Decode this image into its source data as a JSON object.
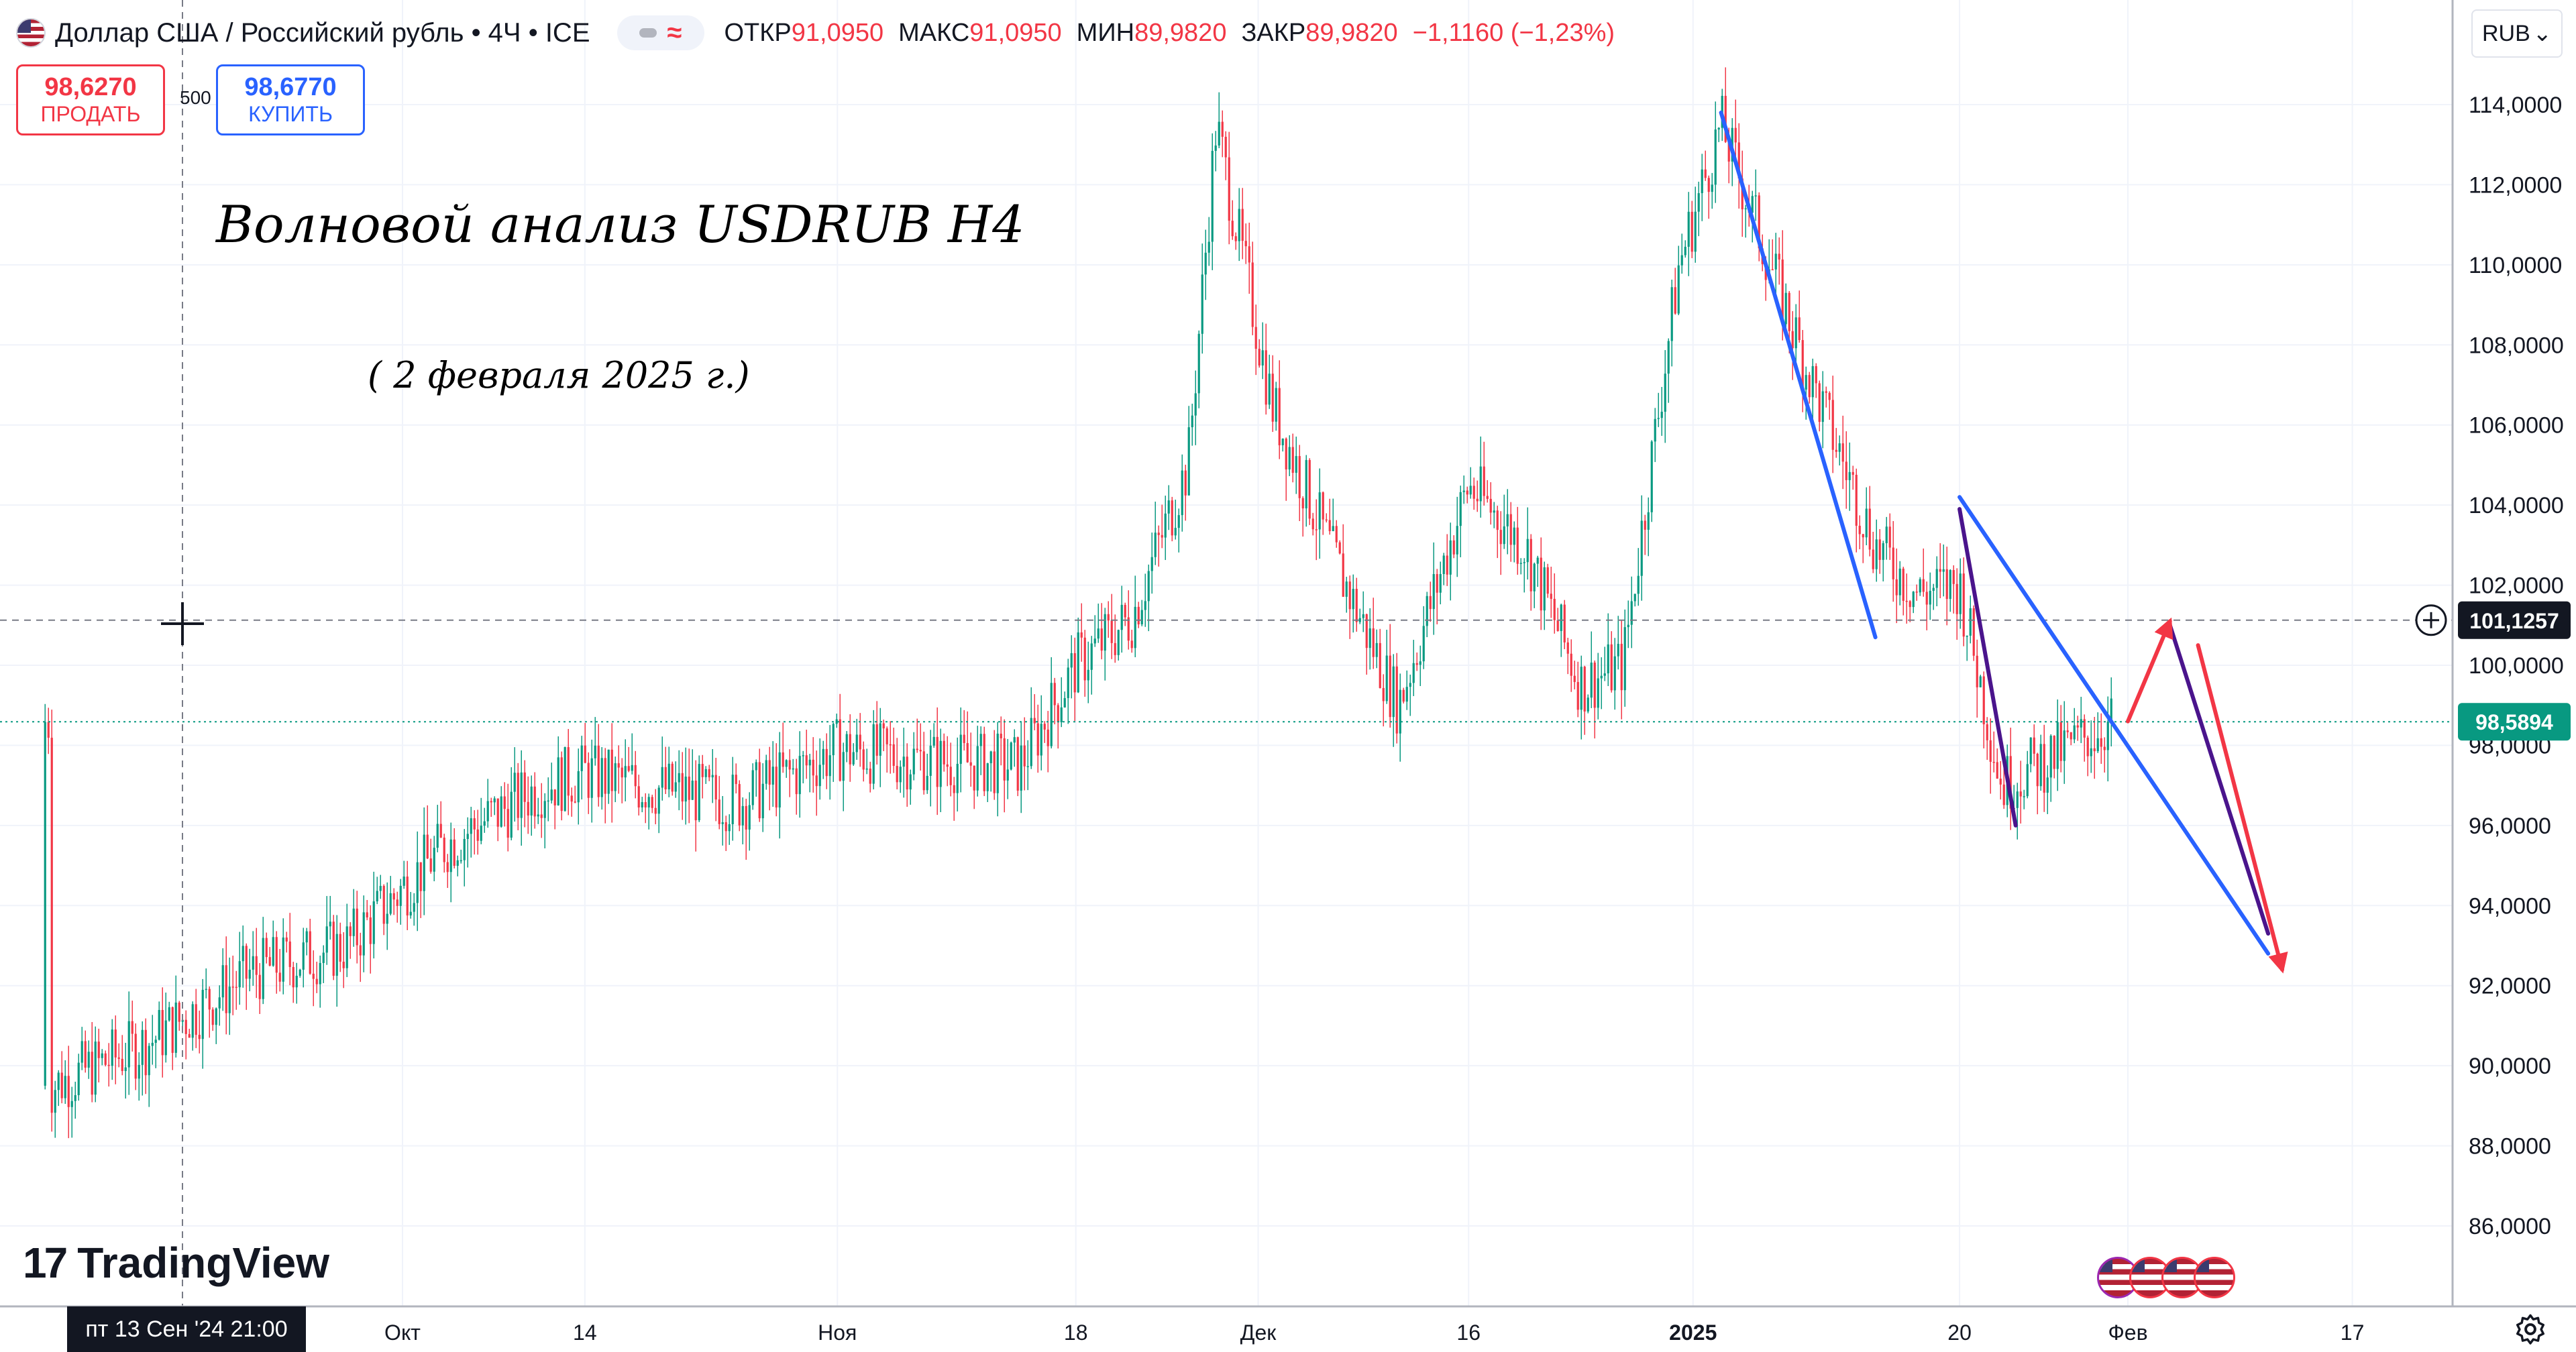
{
  "header": {
    "symbol": "Доллар США / Российский рубль • 4Ч • ICE",
    "ohlc": [
      {
        "label": "ОТКР",
        "value": "91,0950"
      },
      {
        "label": "МАКС",
        "value": "91,0950"
      },
      {
        "label": "МИН",
        "value": "89,9820"
      },
      {
        "label": "ЗАКР",
        "value": "89,9820"
      }
    ],
    "change": "−1,1160 (−1,23%)",
    "currency_button": "RUB",
    "icons": [
      "usd-flag-icon",
      "chevron-down-icon"
    ]
  },
  "trade": {
    "sell_price": "98,6270",
    "sell_label": "ПРОДАТЬ",
    "quantity": "500",
    "buy_price": "98,6770",
    "buy_label": "КУПИТЬ"
  },
  "annotations": {
    "title": "Волновой анализ USDRUB H4",
    "subtitle": "( 2 февраля 2025 г.)"
  },
  "logo": {
    "text": "TradingView"
  },
  "crosshair": {
    "date_label": "пт 13 Сен '24   21:00",
    "price_label": "101,1257"
  },
  "last_price_label": "98,5894",
  "colors": {
    "up": "#089981",
    "down": "#f23645",
    "wave_blue": "#2962ff",
    "wave_purple": "#4a148c",
    "wave_red": "#f23645",
    "last_price": "#089981"
  },
  "chart_data": {
    "type": "candlestick",
    "title": "",
    "xlabel": "",
    "ylabel": "",
    "ylim": [
      84.6,
      116.2
    ],
    "y_ticks": [
      "114,0000",
      "112,0000",
      "110,0000",
      "108,0000",
      "106,0000",
      "104,0000",
      "102,0000",
      "100,0000",
      "98,0000",
      "96,0000",
      "94,0000",
      "92,0000",
      "90,0000",
      "88,0000",
      "86,0000"
    ],
    "x_tick_labels": [
      "Окт",
      "14",
      "Ноя",
      "18",
      "Дек",
      "16",
      "2025",
      "20",
      "Фев",
      "17"
    ],
    "x_tick_bold": [
      "2025"
    ],
    "series": [
      {
        "name": "USDRUB 4Ч",
        "approx_path": [
          {
            "date": "2024-09-06",
            "price": 89.5
          },
          {
            "date": "2024-09-13",
            "price": 90.6
          },
          {
            "date": "2024-09-20",
            "price": 92.3
          },
          {
            "date": "2024-09-27",
            "price": 93.0
          },
          {
            "date": "2024-10-04",
            "price": 95.5
          },
          {
            "date": "2024-10-11",
            "price": 97.0
          },
          {
            "date": "2024-10-14",
            "price": 97.3
          },
          {
            "date": "2024-10-18",
            "price": 97.0
          },
          {
            "date": "2024-10-25",
            "price": 96.6
          },
          {
            "date": "2024-11-01",
            "price": 97.9
          },
          {
            "date": "2024-11-08",
            "price": 97.6
          },
          {
            "date": "2024-11-14",
            "price": 97.5
          },
          {
            "date": "2024-11-18",
            "price": 100.0
          },
          {
            "date": "2024-11-22",
            "price": 101.2
          },
          {
            "date": "2024-11-26",
            "price": 105.0
          },
          {
            "date": "2024-11-28",
            "price": 113.5
          },
          {
            "date": "2024-12-02",
            "price": 106.5
          },
          {
            "date": "2024-12-06",
            "price": 103.0
          },
          {
            "date": "2024-12-11",
            "price": 99.0
          },
          {
            "date": "2024-12-16",
            "price": 104.5
          },
          {
            "date": "2024-12-20",
            "price": 103.0
          },
          {
            "date": "2024-12-24",
            "price": 99.5
          },
          {
            "date": "2024-12-27",
            "price": 100.0
          },
          {
            "date": "2024-12-31",
            "price": 110.0
          },
          {
            "date": "2025-01-03",
            "price": 113.5
          },
          {
            "date": "2025-01-09",
            "price": 107.5
          },
          {
            "date": "2025-01-14",
            "price": 103.0
          },
          {
            "date": "2025-01-17",
            "price": 101.8
          },
          {
            "date": "2025-01-20",
            "price": 102.0
          },
          {
            "date": "2025-01-23",
            "price": 97.0
          },
          {
            "date": "2025-01-27",
            "price": 97.8
          },
          {
            "date": "2025-01-31",
            "price": 98.6
          }
        ]
      }
    ],
    "wave_lines": [
      {
        "color": "blue",
        "from": {
          "date": "2025-01-03",
          "price": 113.8
        },
        "to": {
          "date": "2025-01-14",
          "price": 100.7
        }
      },
      {
        "color": "blue",
        "from": {
          "date": "2025-01-20",
          "price": 104.2
        },
        "to": {
          "date": "2025-02-11",
          "price": 92.8
        }
      },
      {
        "color": "purple",
        "from": {
          "date": "2025-01-20",
          "price": 103.9
        },
        "to": {
          "date": "2025-01-24",
          "price": 96.0
        }
      },
      {
        "color": "purple",
        "from": {
          "date": "2025-02-04",
          "price": 101.0
        },
        "to": {
          "date": "2025-02-11",
          "price": 93.3
        }
      },
      {
        "color": "red",
        "arrow": true,
        "from": {
          "date": "2025-02-01",
          "price": 98.6
        },
        "to": {
          "date": "2025-02-04",
          "price": 101.1
        }
      },
      {
        "color": "red",
        "arrow": true,
        "from": {
          "date": "2025-02-06",
          "price": 100.5
        },
        "to": {
          "date": "2025-02-12",
          "price": 92.4
        }
      }
    ],
    "crosshair_price": 101.1257,
    "last_price": 98.5894,
    "grid": true,
    "legend": "none"
  }
}
